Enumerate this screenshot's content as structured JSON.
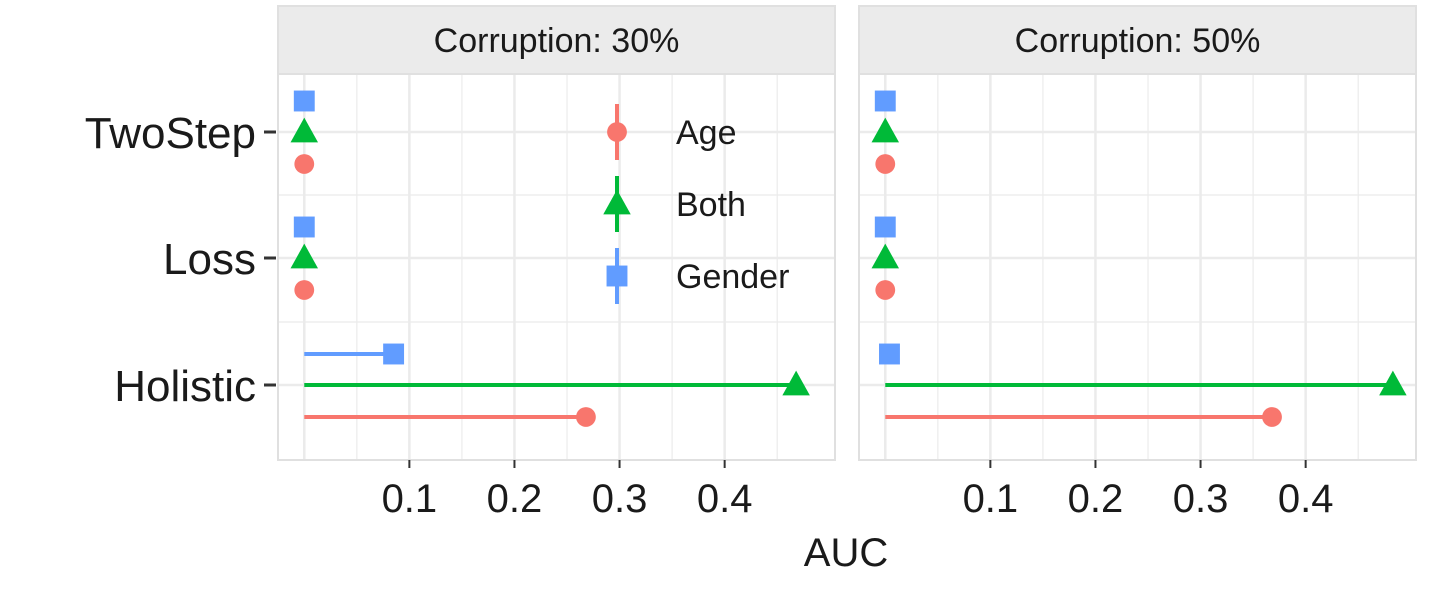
{
  "chart_data": {
    "type": "scatter",
    "xlabel": "AUC",
    "ylabel": "",
    "categories": [
      "TwoStep",
      "Loss",
      "Holistic"
    ],
    "xlim": [
      -0.025,
      0.505
    ],
    "x_ticks": [
      0.1,
      0.2,
      0.3,
      0.4
    ],
    "x_tick_labels": [
      "0.1",
      "0.2",
      "0.3",
      "0.4"
    ],
    "grid": true,
    "legend_position": "inside-top-right of first panel",
    "series": [
      {
        "name": "Age",
        "color": "#F8766D",
        "shape": "circle"
      },
      {
        "name": "Both",
        "color": "#00BA38",
        "shape": "triangle"
      },
      {
        "name": "Gender",
        "color": "#619CFF",
        "shape": "square"
      }
    ],
    "panels": [
      {
        "title": "Corruption: 30%",
        "values": {
          "Age": {
            "TwoStep": 0.0,
            "Loss": 0.0,
            "Holistic": 0.268
          },
          "Both": {
            "TwoStep": 0.0,
            "Loss": 0.0,
            "Holistic": 0.468
          },
          "Gender": {
            "TwoStep": 0.0,
            "Loss": 0.0,
            "Holistic": 0.085
          }
        }
      },
      {
        "title": "Corruption: 50%",
        "values": {
          "Age": {
            "TwoStep": 0.0,
            "Loss": 0.0,
            "Holistic": 0.368
          },
          "Both": {
            "TwoStep": 0.0,
            "Loss": 0.0,
            "Holistic": 0.483
          },
          "Gender": {
            "TwoStep": 0.0,
            "Loss": 0.0,
            "Holistic": 0.004
          }
        }
      }
    ]
  }
}
